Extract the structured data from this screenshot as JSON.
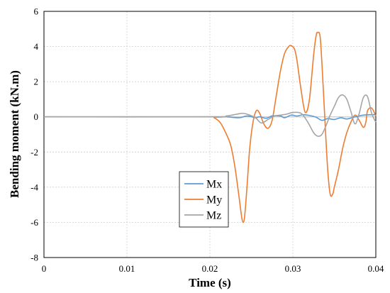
{
  "chart_data": {
    "type": "line",
    "title": "",
    "xlabel": "Time (s)",
    "ylabel": "Bending moment (kN.m)",
    "xlim": [
      0,
      0.04
    ],
    "ylim": [
      -8,
      6
    ],
    "xticks": [
      0,
      0.01,
      0.02,
      0.03,
      0.04
    ],
    "xtick_labels": [
      "0",
      "0.01",
      "0.02",
      "0.03",
      "0.04"
    ],
    "yticks": [
      -8,
      -6,
      -4,
      -2,
      0,
      2,
      4,
      6
    ],
    "ytick_labels": [
      "-8",
      "-6",
      "-4",
      "-2",
      "0",
      "2",
      "4",
      "6"
    ],
    "grid": true,
    "legend_position": "lower-center",
    "series": [
      {
        "name": "Mx",
        "color": "#5b9bd5",
        "x": [
          0,
          0.02,
          0.022,
          0.0235,
          0.0245,
          0.0255,
          0.026,
          0.0268,
          0.0275,
          0.0285,
          0.029,
          0.0298,
          0.0305,
          0.0312,
          0.032,
          0.0328,
          0.0335,
          0.0342,
          0.035,
          0.0358,
          0.0365,
          0.0375,
          0.0385,
          0.0395,
          0.04
        ],
        "y": [
          0,
          0,
          0,
          -0.05,
          0.05,
          -0.05,
          0,
          -0.08,
          0.05,
          0.05,
          -0.05,
          0.1,
          0.05,
          0.12,
          0.08,
          -0.02,
          -0.2,
          -0.1,
          -0.15,
          -0.05,
          -0.12,
          0,
          0.1,
          0.12,
          0.12
        ]
      },
      {
        "name": "My",
        "color": "#ed7d31",
        "x": [
          0,
          0.02,
          0.0205,
          0.0212,
          0.0218,
          0.0225,
          0.023,
          0.0235,
          0.0238,
          0.024,
          0.0242,
          0.0245,
          0.0248,
          0.0252,
          0.0256,
          0.026,
          0.0265,
          0.027,
          0.0275,
          0.028,
          0.0285,
          0.029,
          0.0295,
          0.0298,
          0.0302,
          0.0305,
          0.031,
          0.0315,
          0.032,
          0.0325,
          0.0328,
          0.033,
          0.0333,
          0.0336,
          0.0339,
          0.0342,
          0.0345,
          0.0348,
          0.035,
          0.0355,
          0.036,
          0.0365,
          0.037,
          0.0375,
          0.038,
          0.0385,
          0.0388,
          0.039,
          0.0395,
          0.04
        ],
        "y": [
          0,
          0,
          -0.05,
          -0.3,
          -0.8,
          -1.6,
          -2.8,
          -4.5,
          -5.6,
          -6.0,
          -5.6,
          -3.8,
          -1.8,
          -0.3,
          0.35,
          0.2,
          -0.4,
          -0.65,
          -0.2,
          1.2,
          2.6,
          3.6,
          4.0,
          4.05,
          3.85,
          3.2,
          1.5,
          0.25,
          1.0,
          3.5,
          4.6,
          4.8,
          4.5,
          2.2,
          -0.5,
          -3.0,
          -4.4,
          -4.4,
          -4.0,
          -3.0,
          -1.8,
          -0.9,
          -0.3,
          0.1,
          -0.2,
          -0.6,
          -0.3,
          0.35,
          0.5,
          0.05
        ]
      },
      {
        "name": "Mz",
        "color": "#a5a5a5",
        "x": [
          0,
          0.02,
          0.022,
          0.0232,
          0.024,
          0.0248,
          0.0255,
          0.0262,
          0.027,
          0.0278,
          0.0285,
          0.0292,
          0.03,
          0.031,
          0.0318,
          0.0325,
          0.033,
          0.0335,
          0.034,
          0.0345,
          0.035,
          0.0355,
          0.036,
          0.0365,
          0.037,
          0.0375,
          0.038,
          0.0385,
          0.039,
          0.0395,
          0.04
        ],
        "y": [
          0,
          0,
          0.05,
          0.15,
          0.2,
          0.1,
          -0.05,
          -0.35,
          -0.15,
          0.05,
          0.1,
          0.15,
          0.25,
          0.2,
          -0.3,
          -0.9,
          -1.1,
          -1.0,
          -0.5,
          0.1,
          0.6,
          1.1,
          1.25,
          1.0,
          0.3,
          -0.4,
          0.2,
          1.1,
          1.15,
          0.2,
          -0.3
        ]
      }
    ]
  }
}
